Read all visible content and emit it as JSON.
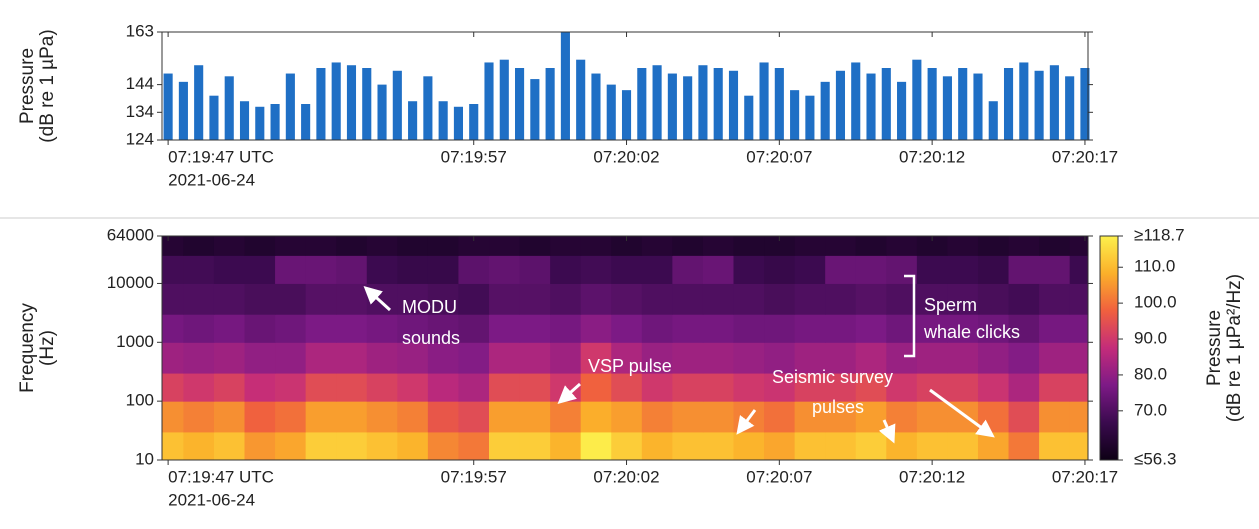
{
  "chart_data": [
    {
      "type": "bar",
      "ylabel": [
        "Pressure",
        "(dB re 1 µPa)"
      ],
      "color": "#1f6fc5",
      "x": [
        0,
        0.5,
        1,
        1.5,
        2,
        2.5,
        3,
        3.5,
        4,
        4.5,
        5,
        5.5,
        6,
        6.5,
        7,
        7.5,
        8,
        8.5,
        9,
        9.5,
        10,
        10.5,
        11,
        11.5,
        12,
        12.5,
        13,
        13.5,
        14,
        14.5,
        15,
        15.5,
        16,
        16.5,
        17,
        17.5,
        18,
        18.5,
        19,
        19.5,
        20,
        20.5,
        21,
        21.5,
        22,
        22.5,
        23,
        23.5,
        24,
        24.5,
        25,
        25.5,
        26,
        26.5,
        27,
        27.5,
        28,
        28.5,
        29,
        29.5,
        30
      ],
      "values": [
        148,
        145,
        151,
        140,
        147,
        138,
        136,
        137,
        148,
        137,
        150,
        152,
        151,
        150,
        144,
        149,
        138,
        147,
        138,
        136,
        137,
        152,
        153,
        150,
        146,
        150,
        163,
        153,
        148,
        144,
        142,
        150,
        151,
        148,
        147,
        151,
        150,
        149,
        140,
        152,
        150,
        142,
        140,
        145,
        149,
        152,
        148,
        150,
        145,
        153,
        150,
        147,
        150,
        148,
        138,
        150,
        152,
        149,
        151,
        147,
        150
      ],
      "xlim": [
        -0.2,
        30.1
      ],
      "xticks": [
        {
          "value": 0,
          "label": "07:19:47 UTC"
        },
        {
          "value": 10,
          "label": "07:19:57"
        },
        {
          "value": 15,
          "label": "07:20:02"
        },
        {
          "value": 20,
          "label": "07:20:07"
        },
        {
          "value": 25,
          "label": "07:20:12"
        },
        {
          "value": 30,
          "label": "07:20:17"
        }
      ],
      "date": "2021-06-24",
      "ylim": [
        124,
        163
      ],
      "yticks": [
        124,
        134,
        144,
        163
      ]
    },
    {
      "type": "heatmap",
      "ylabel": [
        "Frequency",
        "(Hz)"
      ],
      "log_y": true,
      "x": [
        0,
        1,
        2,
        3,
        4,
        5,
        6,
        7,
        8,
        9,
        10,
        11,
        12,
        13,
        14,
        15,
        16,
        17,
        18,
        19,
        20,
        21,
        22,
        23,
        24,
        25,
        26,
        27,
        28,
        29,
        30
      ],
      "y_bins": [
        10,
        30,
        100,
        300,
        1000,
        3000,
        10000,
        30000,
        64000
      ],
      "z": [
        [
          111,
          109,
          111,
          105,
          107,
          113,
          113,
          111,
          109,
          103,
          101,
          113,
          113,
          109,
          118,
          113,
          109,
          111,
          111,
          109,
          107,
          111,
          111,
          113,
          109,
          111,
          111,
          107,
          101,
          111,
          111
        ],
        [
          104,
          102,
          104,
          98,
          100,
          106,
          106,
          104,
          102,
          96,
          94,
          106,
          106,
          102,
          108,
          106,
          102,
          104,
          104,
          102,
          100,
          104,
          104,
          106,
          102,
          104,
          104,
          100,
          94,
          104,
          104
        ],
        [
          92,
          90,
          92,
          88,
          89,
          94,
          94,
          92,
          90,
          86,
          84,
          94,
          94,
          90,
          98,
          94,
          90,
          92,
          92,
          90,
          89,
          92,
          92,
          94,
          90,
          92,
          92,
          89,
          84,
          92,
          92
        ],
        [
          82,
          81,
          82,
          80,
          80,
          84,
          84,
          82,
          81,
          79,
          78,
          84,
          84,
          82,
          90,
          84,
          81,
          82,
          82,
          81,
          80,
          82,
          82,
          84,
          81,
          82,
          82,
          80,
          78,
          82,
          82
        ],
        [
          76,
          75,
          76,
          74,
          75,
          77,
          77,
          76,
          75,
          74,
          73,
          77,
          77,
          76,
          79,
          77,
          75,
          76,
          76,
          75,
          75,
          76,
          76,
          77,
          75,
          76,
          76,
          75,
          73,
          76,
          76
        ],
        [
          70,
          70,
          70,
          69,
          69,
          71,
          71,
          70,
          70,
          69,
          68,
          71,
          71,
          70,
          72,
          71,
          70,
          70,
          70,
          70,
          69,
          70,
          70,
          71,
          70,
          70,
          70,
          69,
          68,
          70,
          70
        ],
        [
          68,
          68,
          67,
          67,
          74,
          74,
          73,
          67,
          66,
          66,
          72,
          73,
          72,
          67,
          68,
          67,
          67,
          73,
          74,
          67,
          66,
          67,
          74,
          74,
          73,
          67,
          67,
          66,
          73,
          73,
          67
        ],
        [
          62,
          61,
          62,
          61,
          62,
          62,
          61,
          62,
          61,
          61,
          62,
          62,
          61,
          62,
          62,
          61,
          62,
          61,
          62,
          61,
          61,
          62,
          62,
          61,
          62,
          61,
          62,
          61,
          62,
          61,
          62
        ]
      ],
      "colormap": [
        "#0d0015",
        "#3a0a4e",
        "#7d1a86",
        "#c42c7a",
        "#f0603e",
        "#fbb02a",
        "#fdf04c"
      ],
      "clim": [
        56.3,
        118.7
      ],
      "cticks": [
        {
          "value": 118.7,
          "label": "≥118.7"
        },
        {
          "value": 110,
          "label": "110.0"
        },
        {
          "value": 100,
          "label": "100.0"
        },
        {
          "value": 90,
          "label": "90.0"
        },
        {
          "value": 80,
          "label": "80.0"
        },
        {
          "value": 70,
          "label": "70.0"
        },
        {
          "value": 56.3,
          "label": "≤56.3"
        }
      ],
      "clabel": [
        "Pressure",
        "(dB re 1 µPa²/Hz)"
      ],
      "xlim": [
        -0.2,
        30.1
      ],
      "xticks": [
        {
          "value": 0,
          "label": "07:19:47 UTC"
        },
        {
          "value": 10,
          "label": "07:19:57"
        },
        {
          "value": 15,
          "label": "07:20:02"
        },
        {
          "value": 20,
          "label": "07:20:07"
        },
        {
          "value": 25,
          "label": "07:20:12"
        },
        {
          "value": 30,
          "label": "07:20:17"
        }
      ],
      "date": "2021-06-24",
      "ylim": [
        10,
        64000
      ],
      "yticks": [
        10,
        100,
        1000,
        10000,
        64000
      ],
      "annotations": [
        [
          "MODU",
          "sounds"
        ],
        [
          "Sperm",
          "whale clicks"
        ],
        [
          "VSP pulse"
        ],
        [
          "Seismic survey",
          "pulses"
        ]
      ]
    }
  ]
}
